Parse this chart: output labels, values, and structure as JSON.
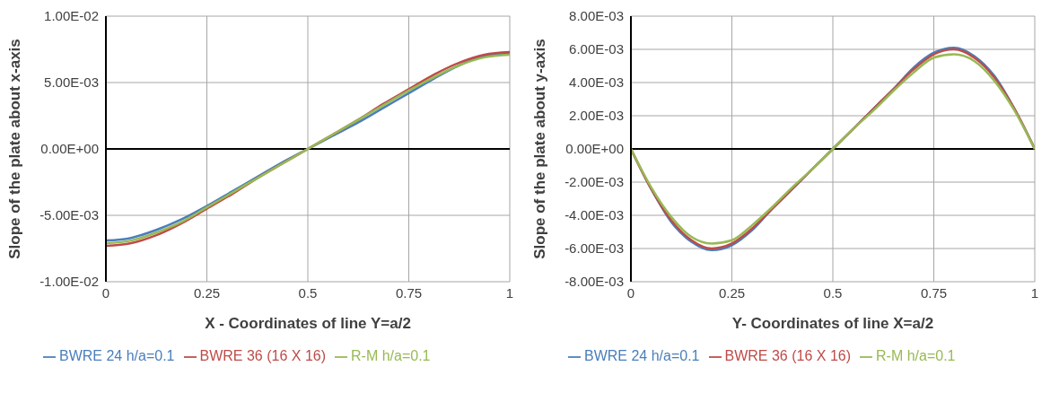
{
  "chart_data": [
    {
      "type": "line",
      "xlabel": "X - Coordinates of line Y=a/2",
      "ylabel": "Slope of the plate about x-axis",
      "x": [
        0,
        0.0625,
        0.125,
        0.1875,
        0.25,
        0.3125,
        0.375,
        0.4375,
        0.5,
        0.5625,
        0.625,
        0.6875,
        0.75,
        0.8125,
        0.875,
        0.9375,
        1
      ],
      "series": [
        {
          "name": "BWRE 24 h/a=0.1",
          "color": "#4a7ebb",
          "values": [
            -0.0069,
            -0.0067,
            -0.0061,
            -0.0053,
            -0.0043,
            -0.0032,
            -0.0021,
            -0.001,
            0,
            0.001,
            0.002,
            0.0031,
            0.0042,
            0.0053,
            0.0063,
            0.007,
            0.0072
          ]
        },
        {
          "name": "BWRE 36 (16 X 16)",
          "color": "#be4b48",
          "values": [
            -0.0073,
            -0.0071,
            -0.0065,
            -0.0056,
            -0.0045,
            -0.0034,
            -0.0022,
            -0.0011,
            0,
            0.0011,
            0.0022,
            0.0034,
            0.0045,
            0.0056,
            0.0065,
            0.0071,
            0.0073
          ]
        },
        {
          "name": "R-M h/a=0.1",
          "color": "#98b954",
          "values": [
            -0.0071,
            -0.0069,
            -0.0063,
            -0.0055,
            -0.0044,
            -0.0033,
            -0.0022,
            -0.0011,
            0,
            0.0011,
            0.0022,
            0.0033,
            0.0044,
            0.0054,
            0.0063,
            0.0069,
            0.0071
          ]
        }
      ],
      "xlim": [
        0,
        1
      ],
      "xticks": [
        0,
        0.25,
        0.5,
        0.75,
        1
      ],
      "ylim": [
        -0.01,
        0.01
      ],
      "yticks": [
        {
          "value": -0.01,
          "label": "-1.00E-02"
        },
        {
          "value": -0.005,
          "label": "-5.00E-03"
        },
        {
          "value": 0,
          "label": "0.00E+00"
        },
        {
          "value": 0.005,
          "label": "5.00E-03"
        },
        {
          "value": 0.01,
          "label": "1.00E-02"
        }
      ],
      "grid": true,
      "legend": "bottom",
      "marker": "none",
      "line_style": "solid"
    },
    {
      "type": "line",
      "xlabel": "Y- Coordinates of line X=a/2",
      "ylabel": "Slope of the plate about y-axis",
      "x": [
        0,
        0.05,
        0.1,
        0.15,
        0.2,
        0.25,
        0.3,
        0.35,
        0.4,
        0.45,
        0.5,
        0.55,
        0.6,
        0.65,
        0.7,
        0.75,
        0.8,
        0.85,
        0.9,
        0.95,
        1
      ],
      "series": [
        {
          "name": "BWRE 24 h/a=0.1",
          "color": "#4a7ebb",
          "values": [
            0,
            -0.0024,
            -0.0044,
            -0.0056,
            -0.0061,
            -0.0058,
            -0.0049,
            -0.0036,
            -0.0024,
            -0.0012,
            0,
            0.0012,
            0.0024,
            0.0036,
            0.0049,
            0.0058,
            0.0061,
            0.0056,
            0.0044,
            0.0024,
            0
          ]
        },
        {
          "name": "BWRE 36 (16 X 16)",
          "color": "#be4b48",
          "values": [
            0,
            -0.0024,
            -0.0043,
            -0.0055,
            -0.006,
            -0.0057,
            -0.0048,
            -0.0036,
            -0.0024,
            -0.0012,
            0,
            0.0012,
            0.0024,
            0.0036,
            0.0048,
            0.0057,
            0.006,
            0.0055,
            0.0043,
            0.0024,
            0
          ]
        },
        {
          "name": "R-M h/a=0.1",
          "color": "#98b954",
          "values": [
            0,
            -0.0023,
            -0.0041,
            -0.0053,
            -0.0057,
            -0.0055,
            -0.0046,
            -0.0035,
            -0.0023,
            -0.0012,
            0,
            0.0012,
            0.0023,
            0.0035,
            0.0046,
            0.0055,
            0.0057,
            0.0053,
            0.0041,
            0.0023,
            0
          ]
        }
      ],
      "xlim": [
        0,
        1
      ],
      "xticks": [
        0,
        0.25,
        0.5,
        0.75,
        1
      ],
      "ylim": [
        -0.008,
        0.008
      ],
      "yticks": [
        {
          "value": -0.008,
          "label": "-8.00E-03"
        },
        {
          "value": -0.006,
          "label": "-6.00E-03"
        },
        {
          "value": -0.004,
          "label": "-4.00E-03"
        },
        {
          "value": -0.002,
          "label": "-2.00E-03"
        },
        {
          "value": 0,
          "label": "0.00E+00"
        },
        {
          "value": 0.002,
          "label": "2.00E-03"
        },
        {
          "value": 0.004,
          "label": "4.00E-03"
        },
        {
          "value": 0.006,
          "label": "6.00E-03"
        },
        {
          "value": 0.008,
          "label": "8.00E-03"
        }
      ],
      "grid": true,
      "legend": "bottom",
      "marker": "none",
      "line_style": "solid"
    }
  ]
}
